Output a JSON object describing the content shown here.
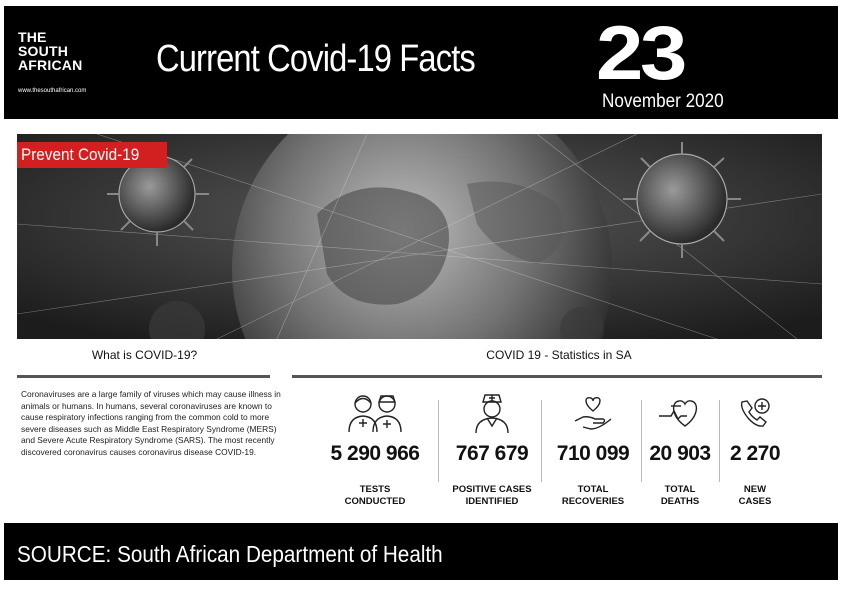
{
  "header": {
    "brand_line1": "THE",
    "brand_line2": "SOUTH",
    "brand_line3": "AFRICAN",
    "brand_url": "www.thesouthafrican.com",
    "title": "Current Covid-19 Facts",
    "day": "23",
    "month_year": "November 2020"
  },
  "banner": {
    "tag": "Prevent Covid-19"
  },
  "about": {
    "heading": "What is COVID-19?",
    "text": "Coronaviruses are a large family of viruses which may cause illness in animals or humans. In humans, several coronaviruses are known to cause respiratory infections ranging from the common cold to more severe diseases such as Middle East Respiratory Syndrome (MERS) and Severe Acute Respiratory Syndrome (SARS). The most recently discovered coronavirus causes coronavirus disease COVID-19."
  },
  "stats": {
    "heading": "COVID 19 - Statistics in SA",
    "items": [
      {
        "icon": "health-workers-icon",
        "value": "5 290 966",
        "label_line1": "TESTS",
        "label_line2": "CONDUCTED"
      },
      {
        "icon": "nurse-icon",
        "value": "767 679",
        "label_line1": "POSITIVE CASES",
        "label_line2": "IDENTIFIED"
      },
      {
        "icon": "heart-hand-icon",
        "value": "710 099",
        "label_line1": "TOTAL",
        "label_line2": "RECOVERIES"
      },
      {
        "icon": "heart-minus-icon",
        "value": "20 903",
        "label_line1": "TOTAL",
        "label_line2": "DEATHS"
      },
      {
        "icon": "phone-plus-icon",
        "value": "2 270",
        "label_line1": "NEW",
        "label_line2": "CASES"
      }
    ]
  },
  "footer": {
    "source": "SOURCE: South African Department of Health"
  }
}
